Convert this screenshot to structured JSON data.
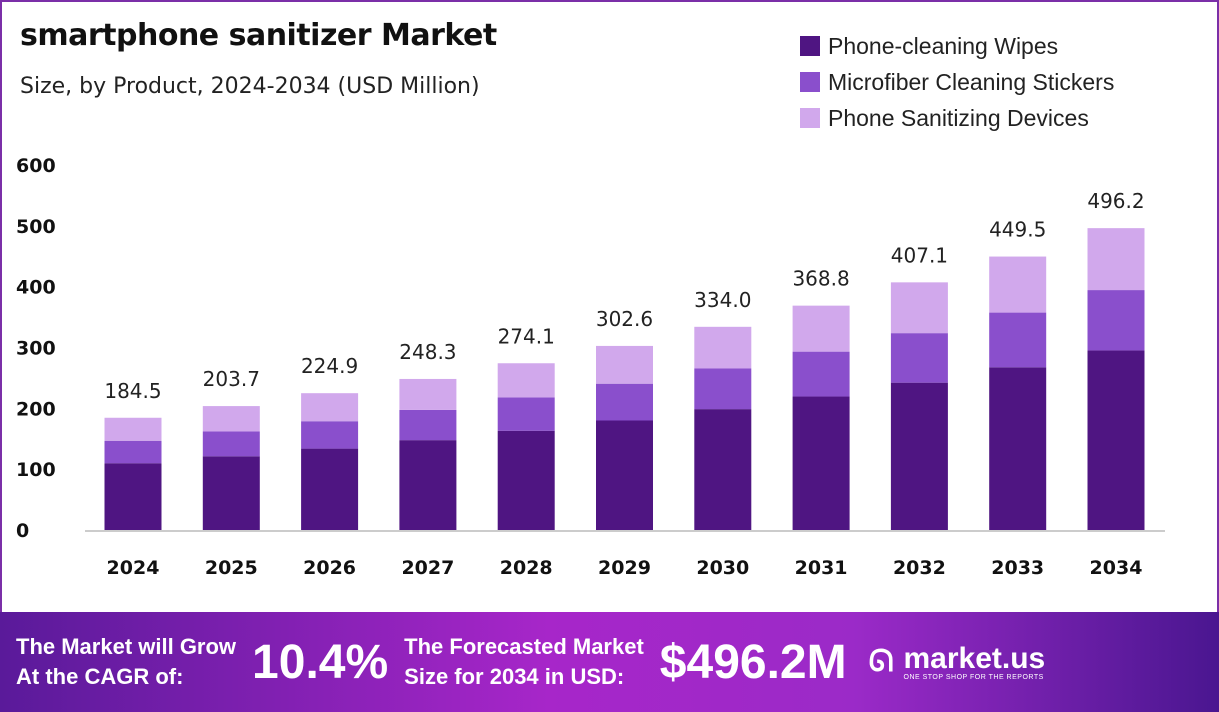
{
  "chart_data": {
    "type": "bar",
    "stacked": true,
    "title": "smartphone sanitizer Market",
    "subtitle": "Size, by Product, 2024-2034 (USD Million)",
    "categories": [
      "2024",
      "2025",
      "2026",
      "2027",
      "2028",
      "2029",
      "2030",
      "2031",
      "2032",
      "2033",
      "2034"
    ],
    "series": [
      {
        "name": "Phone-cleaning Wipes",
        "color": "#4f1582",
        "values": [
          109.8,
          121.2,
          133.8,
          147.7,
          163.1,
          180.0,
          198.7,
          219.4,
          242.2,
          267.5,
          295.2
        ]
      },
      {
        "name": "Microfiber Cleaning Stickers",
        "color": "#8a4fcc",
        "values": [
          36.9,
          40.7,
          45.0,
          49.7,
          54.8,
          60.5,
          66.8,
          73.8,
          81.4,
          89.9,
          99.2
        ]
      },
      {
        "name": "Phone Sanitizing Devices",
        "color": "#d1a8ec",
        "values": [
          37.8,
          41.8,
          46.1,
          50.9,
          56.2,
          62.1,
          68.5,
          75.6,
          83.5,
          92.1,
          101.8
        ]
      }
    ],
    "totals": [
      "184.5",
      "203.7",
      "224.9",
      "248.3",
      "274.1",
      "302.6",
      "334.0",
      "368.8",
      "407.1",
      "449.5",
      "496.2"
    ],
    "yticks": [
      "0",
      "100",
      "200",
      "300",
      "400",
      "500",
      "600"
    ],
    "ylim": [
      0,
      600
    ],
    "grid": false,
    "legend_position": "top-right"
  },
  "banner": {
    "cagr_text_1": "The Market will Grow",
    "cagr_text_2": "At the CAGR of:",
    "cagr_value": "10.4%",
    "forecast_text_1": "The Forecasted Market",
    "forecast_text_2": "Size for 2034 in USD:",
    "forecast_value": "$496.2M",
    "logo_name": "market.us",
    "logo_tagline": "ONE STOP SHOP FOR THE REPORTS"
  }
}
